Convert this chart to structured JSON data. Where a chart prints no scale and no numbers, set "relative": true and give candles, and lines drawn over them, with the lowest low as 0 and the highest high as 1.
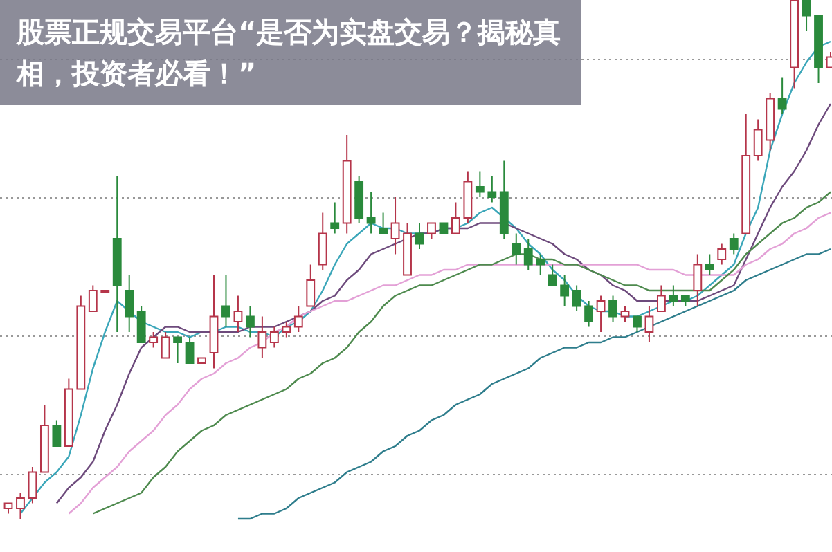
{
  "chart_data": {
    "type": "candlestick",
    "title": "股票正规交易平台“是否为实盘交易？揭秘真相，投资者必看！”",
    "relative": true,
    "grid": "y",
    "categories": [
      null,
      null,
      null,
      null,
      null,
      null,
      null,
      null,
      null,
      null,
      null,
      null,
      null,
      null,
      null,
      null,
      null,
      null,
      null,
      null,
      null,
      null,
      null,
      null,
      null,
      null,
      null,
      null,
      null,
      null,
      null,
      null,
      null,
      null,
      null,
      null,
      null,
      null,
      null,
      null,
      null,
      null,
      null,
      null,
      null,
      null,
      null,
      null,
      null,
      null,
      null,
      null,
      null,
      null,
      null,
      null,
      null,
      null,
      null,
      null,
      null,
      null,
      null,
      null,
      null,
      null,
      null,
      null,
      null
    ],
    "ohlc": [
      [
        0.02,
        0.03,
        0.01,
        0.03
      ],
      [
        0.02,
        0.05,
        0,
        0.04
      ],
      [
        0.04,
        0.1,
        0.03,
        0.09
      ],
      [
        0.09,
        0.22,
        0.09,
        0.18
      ],
      [
        0.18,
        0.19,
        0.14,
        0.14
      ],
      [
        0.14,
        0.27,
        0.14,
        0.25
      ],
      [
        0.25,
        0.43,
        0.25,
        0.41
      ],
      [
        0.4,
        0.45,
        0.4,
        0.44
      ],
      [
        0.44,
        0.44,
        0.44,
        0.44
      ],
      [
        0.54,
        0.66,
        0.36,
        0.45
      ],
      [
        0.44,
        0.47,
        0.36,
        0.39
      ],
      [
        0.4,
        0.41,
        0.34,
        0.34
      ],
      [
        0.34,
        0.36,
        0.33,
        0.35
      ],
      [
        0.31,
        0.36,
        0.31,
        0.35
      ],
      [
        0.35,
        0.35,
        0.3,
        0.34
      ],
      [
        0.34,
        0.35,
        0.3,
        0.3
      ],
      [
        0.3,
        0.31,
        0.3,
        0.31
      ],
      [
        0.32,
        0.47,
        0.29,
        0.39
      ],
      [
        0.41,
        0.47,
        0.37,
        0.39
      ],
      [
        0.38,
        0.43,
        0.36,
        0.4
      ],
      [
        0.39,
        0.41,
        0.35,
        0.37
      ],
      [
        0.33,
        0.39,
        0.31,
        0.36
      ],
      [
        0.34,
        0.37,
        0.33,
        0.36
      ],
      [
        0.36,
        0.38,
        0.35,
        0.37
      ],
      [
        0.37,
        0.41,
        0.36,
        0.39
      ],
      [
        0.41,
        0.49,
        0.41,
        0.46
      ],
      [
        0.49,
        0.59,
        0.48,
        0.55
      ],
      [
        0.57,
        0.61,
        0.55,
        0.56
      ],
      [
        0.57,
        0.74,
        0.55,
        0.69
      ],
      [
        0.65,
        0.66,
        0.57,
        0.58
      ],
      [
        0.58,
        0.63,
        0.55,
        0.57
      ],
      [
        0.56,
        0.59,
        0.55,
        0.55
      ],
      [
        0.54,
        0.62,
        0.51,
        0.57
      ],
      [
        0.47,
        0.57,
        0.47,
        0.55
      ],
      [
        0.55,
        0.57,
        0.52,
        0.53
      ],
      [
        0.55,
        0.57,
        0.54,
        0.57
      ],
      [
        0.57,
        0.57,
        0.55,
        0.55
      ],
      [
        0.55,
        0.61,
        0.55,
        0.58
      ],
      [
        0.58,
        0.67,
        0.57,
        0.65
      ],
      [
        0.64,
        0.67,
        0.62,
        0.63
      ],
      [
        0.63,
        0.66,
        0.61,
        0.62
      ],
      [
        0.63,
        0.69,
        0.54,
        0.55
      ],
      [
        0.53,
        0.55,
        0.49,
        0.51
      ],
      [
        0.52,
        0.54,
        0.48,
        0.49
      ],
      [
        0.5,
        0.51,
        0.47,
        0.49
      ],
      [
        0.47,
        0.49,
        0.45,
        0.45
      ],
      [
        0.45,
        0.47,
        0.41,
        0.43
      ],
      [
        0.44,
        0.45,
        0.4,
        0.41
      ],
      [
        0.41,
        0.42,
        0.37,
        0.38
      ],
      [
        0.4,
        0.43,
        0.36,
        0.42
      ],
      [
        0.42,
        0.43,
        0.38,
        0.39
      ],
      [
        0.39,
        0.41,
        0.38,
        0.4
      ],
      [
        0.39,
        0.39,
        0.36,
        0.37
      ],
      [
        0.36,
        0.41,
        0.34,
        0.39
      ],
      [
        0.4,
        0.45,
        0.4,
        0.43
      ],
      [
        0.43,
        0.45,
        0.41,
        0.42
      ],
      [
        0.43,
        0.43,
        0.41,
        0.42
      ],
      [
        0.44,
        0.51,
        0.41,
        0.49
      ],
      [
        0.49,
        0.51,
        0.47,
        0.48
      ],
      [
        0.5,
        0.53,
        0.49,
        0.52
      ],
      [
        0.54,
        0.55,
        0.51,
        0.52
      ],
      [
        0.55,
        0.78,
        0.55,
        0.7
      ],
      [
        0.7,
        0.77,
        0.69,
        0.75
      ],
      [
        0.73,
        0.82,
        0.71,
        0.81
      ],
      [
        0.81,
        0.85,
        0.78,
        0.79
      ],
      [
        0.87,
        1,
        0.83,
        1
      ],
      [
        1,
        1,
        0.94,
        0.97
      ],
      [
        0.97,
        0.97,
        0.84,
        0.87
      ],
      [
        0.87,
        0.9,
        0.87,
        0.89
      ]
    ],
    "colors": [
      "#b5354a",
      "#b5354a",
      "#b5354a",
      "#b5354a",
      "#2a8a3c",
      "#b5354a",
      "#b5354a",
      "#b5354a",
      "#b5354a",
      "#2a8a3c",
      "#2a8a3c",
      "#2a8a3c",
      "#b5354a",
      "#b5354a",
      "#2a8a3c",
      "#2a8a3c",
      "#b5354a",
      "#b5354a",
      "#2a8a3c",
      "#b5354a",
      "#2a8a3c",
      "#b5354a",
      "#b5354a",
      "#b5354a",
      "#b5354a",
      "#b5354a",
      "#b5354a",
      "#2a8a3c",
      "#b5354a",
      "#2a8a3c",
      "#2a8a3c",
      "#2a8a3c",
      "#b5354a",
      "#b5354a",
      "#2a8a3c",
      "#b5354a",
      "#2a8a3c",
      "#b5354a",
      "#b5354a",
      "#2a8a3c",
      "#2a8a3c",
      "#2a8a3c",
      "#2a8a3c",
      "#2a8a3c",
      "#2a8a3c",
      "#2a8a3c",
      "#2a8a3c",
      "#2a8a3c",
      "#2a8a3c",
      "#b5354a",
      "#2a8a3c",
      "#b5354a",
      "#2a8a3c",
      "#b5354a",
      "#b5354a",
      "#2a8a3c",
      "#2a8a3c",
      "#b5354a",
      "#2a8a3c",
      "#b5354a",
      "#2a8a3c",
      "#b5354a",
      "#b5354a",
      "#b5354a",
      "#2a8a3c",
      "#b5354a",
      "#2a8a3c",
      "#2a8a3c",
      "#b5354a"
    ],
    "series": [
      {
        "type": "line",
        "color": "#3aa6b9",
        "values": [
          null,
          0.01,
          0.04,
          0.07,
          0.09,
          0.12,
          0.2,
          0.29,
          0.36,
          0.42,
          0.4,
          0.38,
          0.37,
          0.36,
          0.36,
          0.35,
          0.36,
          0.36,
          0.37,
          0.37,
          0.36,
          0.36,
          0.35,
          0.37,
          0.38,
          0.4,
          0.44,
          0.49,
          0.53,
          0.55,
          0.57,
          0.56,
          0.56,
          0.55,
          0.55,
          0.55,
          0.56,
          0.56,
          0.57,
          0.59,
          0.6,
          0.58,
          0.56,
          0.53,
          0.51,
          0.48,
          0.46,
          0.43,
          0.41,
          0.4,
          0.4,
          0.39,
          0.39,
          0.4,
          0.41,
          0.42,
          0.42,
          0.43,
          0.45,
          0.47,
          0.49,
          0.55,
          0.6,
          0.71,
          0.78,
          0.84,
          0.88,
          0.91,
          0.92
        ]
      },
      {
        "type": "line",
        "color": "#6d4a7c",
        "values": [
          null,
          null,
          null,
          null,
          0.03,
          0.06,
          0.08,
          0.11,
          0.17,
          0.22,
          0.28,
          0.33,
          0.35,
          0.37,
          0.37,
          0.36,
          0.36,
          0.36,
          0.36,
          0.36,
          0.37,
          0.37,
          0.37,
          0.38,
          0.39,
          0.4,
          0.42,
          0.43,
          0.46,
          0.48,
          0.51,
          0.52,
          0.53,
          0.54,
          0.55,
          0.55,
          0.56,
          0.56,
          0.56,
          0.57,
          0.57,
          0.57,
          0.56,
          0.55,
          0.54,
          0.53,
          0.51,
          0.5,
          0.48,
          0.47,
          0.45,
          0.44,
          0.42,
          0.42,
          0.42,
          0.42,
          0.42,
          0.42,
          0.43,
          0.44,
          0.45,
          0.5,
          0.55,
          0.6,
          0.64,
          0.67,
          0.71,
          0.76,
          0.8
        ]
      },
      {
        "type": "line",
        "color": "#e3a0d6",
        "values": [
          null,
          null,
          null,
          null,
          null,
          0.01,
          0.03,
          0.06,
          0.08,
          0.1,
          0.13,
          0.15,
          0.17,
          0.2,
          0.22,
          0.25,
          0.27,
          0.28,
          0.3,
          0.31,
          0.33,
          0.34,
          0.36,
          0.37,
          0.39,
          0.4,
          0.41,
          0.42,
          0.42,
          0.43,
          0.44,
          0.45,
          0.45,
          0.46,
          0.47,
          0.47,
          0.48,
          0.48,
          0.49,
          0.49,
          0.49,
          0.49,
          0.49,
          0.49,
          0.49,
          0.49,
          0.49,
          0.49,
          0.49,
          0.49,
          0.49,
          0.49,
          0.49,
          0.48,
          0.48,
          0.48,
          0.47,
          0.47,
          0.47,
          0.47,
          0.47,
          0.49,
          0.5,
          0.52,
          0.53,
          0.55,
          0.56,
          0.58,
          0.59
        ]
      },
      {
        "type": "line",
        "color": "#4e8a4e",
        "values": [
          null,
          null,
          null,
          null,
          null,
          null,
          null,
          0.01,
          0.02,
          0.03,
          0.04,
          0.05,
          0.08,
          0.1,
          0.13,
          0.15,
          0.17,
          0.18,
          0.2,
          0.21,
          0.22,
          0.23,
          0.24,
          0.25,
          0.27,
          0.28,
          0.3,
          0.31,
          0.33,
          0.36,
          0.38,
          0.41,
          0.43,
          0.44,
          0.45,
          0.45,
          0.46,
          0.47,
          0.48,
          0.49,
          0.49,
          0.5,
          0.51,
          0.51,
          0.5,
          0.5,
          0.49,
          0.49,
          0.48,
          0.47,
          0.46,
          0.45,
          0.45,
          0.44,
          0.44,
          0.44,
          0.44,
          0.44,
          0.44,
          0.46,
          0.48,
          0.51,
          0.53,
          0.55,
          0.57,
          0.58,
          0.6,
          0.61,
          0.63
        ]
      },
      {
        "type": "line",
        "color": "#2e7d8c",
        "values": [
          null,
          null,
          null,
          null,
          null,
          null,
          null,
          null,
          null,
          null,
          null,
          null,
          null,
          null,
          null,
          null,
          null,
          null,
          null,
          0,
          0,
          0.01,
          0.01,
          0.02,
          0.04,
          0.05,
          0.06,
          0.07,
          0.09,
          0.1,
          0.11,
          0.13,
          0.14,
          0.16,
          0.17,
          0.19,
          0.2,
          0.22,
          0.23,
          0.24,
          0.26,
          0.27,
          0.28,
          0.29,
          0.31,
          0.32,
          0.33,
          0.33,
          0.34,
          0.34,
          0.35,
          0.35,
          0.36,
          0.37,
          0.38,
          0.39,
          0.4,
          0.41,
          0.42,
          0.43,
          0.44,
          0.46,
          0.47,
          0.48,
          0.49,
          0.5,
          0.51,
          0.51,
          0.52
        ]
      }
    ]
  }
}
